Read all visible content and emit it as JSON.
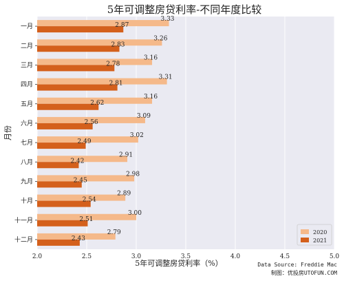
{
  "chart_data": {
    "type": "bar",
    "orientation": "horizontal",
    "title": "5年可调整房贷利率-不同年度比较",
    "xlabel": "5年可调整房贷利率（%）",
    "ylabel": "月份",
    "xlim": [
      2.0,
      5.0
    ],
    "xticks": [
      "2.0",
      "2.5",
      "3.0",
      "3.5",
      "4.0",
      "4.5",
      "5.0"
    ],
    "categories": [
      "一月",
      "二月",
      "三月",
      "四月",
      "五月",
      "六月",
      "七月",
      "八月",
      "九月",
      "十月",
      "十一月",
      "十二月"
    ],
    "series": [
      {
        "name": "2020",
        "color": "#f5b98a",
        "values": [
          3.33,
          3.26,
          3.16,
          3.31,
          3.16,
          3.09,
          3.02,
          2.91,
          2.98,
          2.89,
          3.0,
          2.79
        ],
        "labels": [
          "3.33",
          "3.26",
          "3.16",
          "3.31",
          "3.16",
          "3.09",
          "3.02",
          "2.91",
          "2.98",
          "2.89",
          "3.00",
          "2.79"
        ]
      },
      {
        "name": "2021",
        "color": "#d4601c",
        "values": [
          2.87,
          2.83,
          2.78,
          2.81,
          2.62,
          2.56,
          2.49,
          2.42,
          2.45,
          2.54,
          2.51,
          2.43
        ],
        "labels": [
          "2.87",
          "2.83",
          "2.78",
          "2.81",
          "2.62",
          "2.56",
          "2.49",
          "2.42",
          "2.45",
          "2.54",
          "2.51",
          "2.43"
        ]
      }
    ],
    "grid": true,
    "background": "#eaeaf2",
    "legend_position": "bottom-right"
  },
  "source_note": {
    "line1": "Data Source: Freddie Mac",
    "line2": "制图：优投房UTOFUN.COM"
  }
}
